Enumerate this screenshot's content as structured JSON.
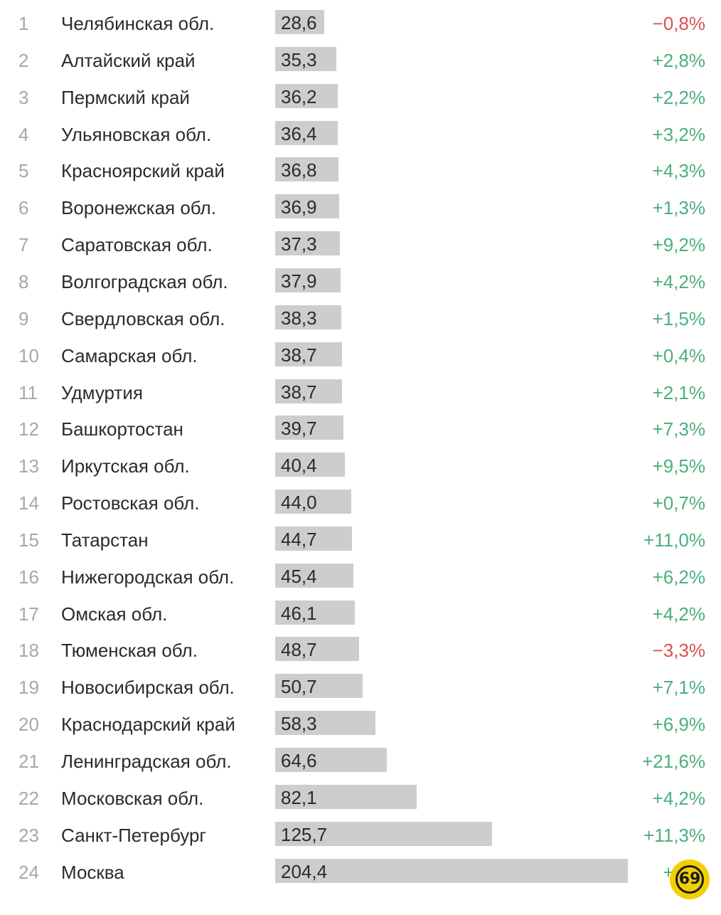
{
  "chart_data": {
    "type": "bar",
    "orientation": "horizontal",
    "title": "",
    "xlabel": "",
    "ylabel": "",
    "xlim": [
      0,
      204.4
    ],
    "grid": false,
    "legend": "none",
    "ranks": [
      "1",
      "2",
      "3",
      "4",
      "5",
      "6",
      "7",
      "8",
      "9",
      "10",
      "11",
      "12",
      "13",
      "14",
      "15",
      "16",
      "17",
      "18",
      "19",
      "20",
      "21",
      "22",
      "23",
      "24"
    ],
    "categories": [
      "Челябинская обл.",
      "Алтайский край",
      "Пермский край",
      "Ульяновская обл.",
      "Красноярский край",
      "Воронежская обл.",
      "Саратовская обл.",
      "Волгоградская обл.",
      "Свердловская обл.",
      "Самарская обл.",
      "Удмуртия",
      "Башкортостан",
      "Иркутская обл.",
      "Ростовская обл.",
      "Татарстан",
      "Нижегородская обл.",
      "Омская обл.",
      "Тюменская обл.",
      "Новосибирская обл.",
      "Краснодарский край",
      "Ленинградская обл.",
      "Московская обл.",
      "Санкт-Петербург",
      "Москва"
    ],
    "values": [
      28.6,
      35.3,
      36.2,
      36.4,
      36.8,
      36.9,
      37.3,
      37.9,
      38.3,
      38.7,
      38.7,
      39.7,
      40.4,
      44.0,
      44.7,
      45.4,
      46.1,
      48.7,
      50.7,
      58.3,
      64.6,
      82.1,
      125.7,
      204.4
    ],
    "value_labels": [
      "28,6",
      "35,3",
      "36,2",
      "36,4",
      "36,8",
      "36,9",
      "37,3",
      "37,9",
      "38,3",
      "38,7",
      "38,7",
      "39,7",
      "40,4",
      "44,0",
      "44,7",
      "45,4",
      "46,1",
      "48,7",
      "50,7",
      "58,3",
      "64,6",
      "82,1",
      "125,7",
      "204,4"
    ],
    "changes": [
      "−0,8%",
      "+2,8%",
      "+2,2%",
      "+3,2%",
      "+4,3%",
      "+1,3%",
      "+9,2%",
      "+4,2%",
      "+1,5%",
      "+0,4%",
      "+2,1%",
      "+7,3%",
      "+9,5%",
      "+0,7%",
      "+11,0%",
      "+6,2%",
      "+4,2%",
      "−3,3%",
      "+7,1%",
      "+6,9%",
      "+21,6%",
      "+4,2%",
      "+11,3%",
      "+7"
    ],
    "colors": {
      "bar": "#cdcdcd",
      "positive": "#4caf7d",
      "negative": "#d9534f",
      "rank": "#a8a8a8",
      "text": "#2b2b2b"
    }
  },
  "logo": {
    "icon": "69-badge-icon",
    "text": "69",
    "color": "#f2d000"
  }
}
